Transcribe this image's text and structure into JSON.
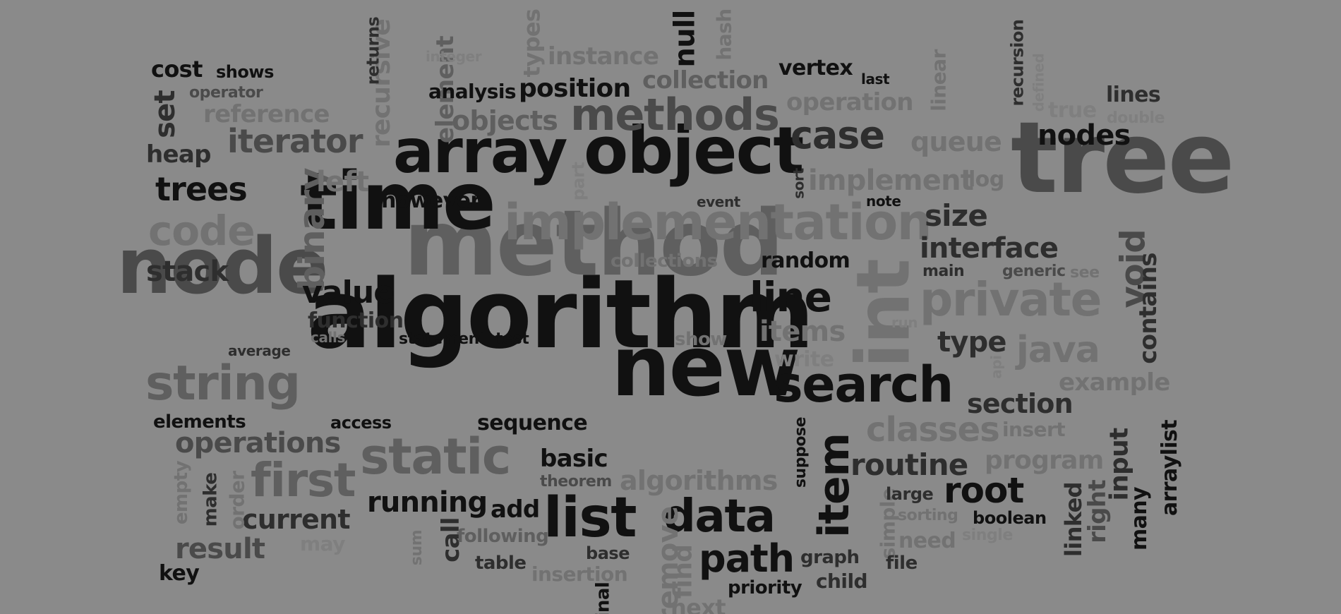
{
  "canvas": {
    "background": "#8a8a8a"
  },
  "palette": [
    "#111111",
    "#2e2e2e",
    "#4a4a4a",
    "#5f5f5f",
    "#727272",
    "#7f7f7f"
  ],
  "words": [
    {
      "text": "algorithm"
    },
    {
      "text": "method"
    },
    {
      "text": "node"
    },
    {
      "text": "time"
    },
    {
      "text": "tree"
    },
    {
      "text": "new"
    },
    {
      "text": "object"
    },
    {
      "text": "array"
    },
    {
      "text": "implementation"
    },
    {
      "text": "int"
    },
    {
      "text": "private"
    },
    {
      "text": "search"
    },
    {
      "text": "static"
    },
    {
      "text": "string"
    },
    {
      "text": "first"
    },
    {
      "text": "list"
    },
    {
      "text": "methods"
    },
    {
      "text": "data"
    },
    {
      "text": "path"
    },
    {
      "text": "code"
    },
    {
      "text": "case"
    },
    {
      "text": "item"
    },
    {
      "text": "binary"
    },
    {
      "text": "line"
    },
    {
      "text": "java"
    },
    {
      "text": "classes"
    },
    {
      "text": "root"
    },
    {
      "text": "iterator"
    },
    {
      "text": "trees"
    },
    {
      "text": "void"
    },
    {
      "text": "value"
    },
    {
      "text": "routine"
    },
    {
      "text": "size"
    },
    {
      "text": "nodes"
    },
    {
      "text": "implement"
    },
    {
      "text": "interface"
    },
    {
      "text": "operations"
    },
    {
      "text": "running"
    },
    {
      "text": "current"
    },
    {
      "text": "result"
    },
    {
      "text": "type"
    },
    {
      "text": "section"
    },
    {
      "text": "items"
    },
    {
      "text": "algorithms"
    },
    {
      "text": "program"
    },
    {
      "text": "input"
    },
    {
      "text": "example"
    },
    {
      "text": "queue"
    },
    {
      "text": "position"
    },
    {
      "text": "collection"
    },
    {
      "text": "objects"
    },
    {
      "text": "stack"
    },
    {
      "text": "reference"
    },
    {
      "text": "recursive"
    },
    {
      "text": "instance"
    },
    {
      "text": "operation"
    },
    {
      "text": "remove"
    },
    {
      "text": "contains"
    },
    {
      "text": "null"
    },
    {
      "text": "set"
    },
    {
      "text": "cost"
    },
    {
      "text": "however"
    },
    {
      "text": "random"
    },
    {
      "text": "left"
    },
    {
      "text": "basic"
    },
    {
      "text": "sequence"
    },
    {
      "text": "function"
    },
    {
      "text": "heap"
    },
    {
      "text": "find"
    },
    {
      "text": "element"
    },
    {
      "text": "analysis"
    },
    {
      "text": "vertex"
    },
    {
      "text": "lines"
    },
    {
      "text": "true"
    },
    {
      "text": "add"
    },
    {
      "text": "right"
    },
    {
      "text": "linked"
    },
    {
      "text": "call"
    },
    {
      "text": "types"
    },
    {
      "text": "hash"
    },
    {
      "text": "arraylist"
    },
    {
      "text": "many"
    },
    {
      "text": "next"
    },
    {
      "text": "key"
    },
    {
      "text": "elements"
    },
    {
      "text": "linear"
    },
    {
      "text": "recursion"
    },
    {
      "text": "collections"
    },
    {
      "text": "returns"
    },
    {
      "text": "shows"
    },
    {
      "text": "operator"
    },
    {
      "text": "integer"
    },
    {
      "text": "last"
    },
    {
      "text": "defined"
    },
    {
      "text": "double"
    },
    {
      "text": "log"
    },
    {
      "text": "part"
    },
    {
      "text": "event"
    },
    {
      "text": "sort"
    },
    {
      "text": "note"
    },
    {
      "text": "main"
    },
    {
      "text": "generic"
    },
    {
      "text": "see"
    },
    {
      "text": "run"
    },
    {
      "text": "average"
    },
    {
      "text": "calls"
    },
    {
      "text": "statement"
    },
    {
      "text": "test"
    },
    {
      "text": "show"
    },
    {
      "text": "write"
    },
    {
      "text": "api"
    },
    {
      "text": "access"
    },
    {
      "text": "theorem"
    },
    {
      "text": "suppose"
    },
    {
      "text": "insert"
    },
    {
      "text": "empty"
    },
    {
      "text": "make"
    },
    {
      "text": "order"
    },
    {
      "text": "may"
    },
    {
      "text": "sum"
    },
    {
      "text": "following"
    },
    {
      "text": "table"
    },
    {
      "text": "base"
    },
    {
      "text": "insertion"
    },
    {
      "text": "final"
    },
    {
      "text": "priority"
    },
    {
      "text": "graph"
    },
    {
      "text": "child"
    },
    {
      "text": "simple"
    },
    {
      "text": "large"
    },
    {
      "text": "sorting"
    },
    {
      "text": "boolean"
    },
    {
      "text": "need"
    },
    {
      "text": "single"
    },
    {
      "text": "file"
    }
  ]
}
